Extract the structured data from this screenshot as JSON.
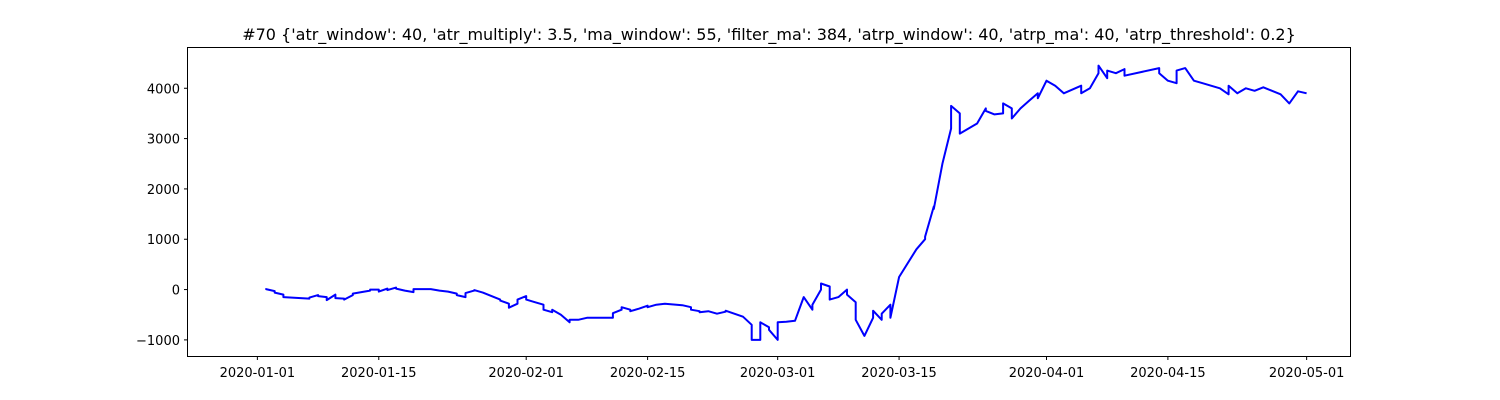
{
  "chart_data": {
    "type": "line",
    "title": "#70 {'atr_window': 40, 'atr_multiply': 3.5, 'ma_window': 55, 'filter_ma': 384, 'atrp_window': 40, 'atrp_ma': 40, 'atrp_threshold': 0.2}",
    "xlabel": "",
    "ylabel": "",
    "x_ticks": [
      "2020-01-01",
      "2020-01-15",
      "2020-02-01",
      "2020-02-15",
      "2020-03-01",
      "2020-03-15",
      "2020-04-01",
      "2020-04-15",
      "2020-05-01"
    ],
    "y_ticks": [
      -1000,
      0,
      1000,
      2000,
      3000,
      4000
    ],
    "xlim": [
      "2019-12-24",
      "2020-05-06"
    ],
    "ylim": [
      -1320,
      4800
    ],
    "grid": false,
    "series_color": "#0000ff",
    "series": [
      {
        "points": [
          [
            "2020-01-02",
            0
          ],
          [
            "2020-01-02",
            10
          ],
          [
            "2020-01-03",
            -30
          ],
          [
            "2020-01-03",
            -60
          ],
          [
            "2020-01-04",
            -100
          ],
          [
            "2020-01-04",
            -150
          ],
          [
            "2020-01-07",
            -180
          ],
          [
            "2020-01-07",
            -160
          ],
          [
            "2020-01-08",
            -110
          ],
          [
            "2020-01-08",
            -130
          ],
          [
            "2020-01-09",
            -150
          ],
          [
            "2020-01-09",
            -210
          ],
          [
            "2020-01-10",
            -100
          ],
          [
            "2020-01-10",
            -170
          ],
          [
            "2020-01-11",
            -180
          ],
          [
            "2020-01-11",
            -200
          ],
          [
            "2020-01-12",
            -110
          ],
          [
            "2020-01-12",
            -80
          ],
          [
            "2020-01-13",
            -50
          ],
          [
            "2020-01-14",
            -20
          ],
          [
            "2020-01-14",
            0
          ],
          [
            "2020-01-15",
            0
          ],
          [
            "2020-01-15",
            -40
          ],
          [
            "2020-01-16",
            20
          ],
          [
            "2020-01-16",
            -10
          ],
          [
            "2020-01-17",
            40
          ],
          [
            "2020-01-17",
            20
          ],
          [
            "2020-01-18",
            -20
          ],
          [
            "2020-01-19",
            -50
          ],
          [
            "2020-01-19",
            10
          ],
          [
            "2020-01-21",
            10
          ],
          [
            "2020-01-22",
            -20
          ],
          [
            "2020-01-23",
            -40
          ],
          [
            "2020-01-24",
            -80
          ],
          [
            "2020-01-24",
            -110
          ],
          [
            "2020-01-25",
            -150
          ],
          [
            "2020-01-25",
            -70
          ],
          [
            "2020-01-26",
            -20
          ],
          [
            "2020-01-26",
            -10
          ],
          [
            "2020-01-27",
            -60
          ],
          [
            "2020-01-28",
            -130
          ],
          [
            "2020-01-29",
            -200
          ],
          [
            "2020-01-29",
            -220
          ],
          [
            "2020-01-30",
            -280
          ],
          [
            "2020-01-30",
            -360
          ],
          [
            "2020-01-31",
            -280
          ],
          [
            "2020-01-31",
            -200
          ],
          [
            "2020-02-01",
            -130
          ],
          [
            "2020-02-01",
            -200
          ],
          [
            "2020-02-02",
            -250
          ],
          [
            "2020-02-03",
            -300
          ],
          [
            "2020-02-03",
            -400
          ],
          [
            "2020-02-04",
            -450
          ],
          [
            "2020-02-04",
            -400
          ],
          [
            "2020-02-05",
            -500
          ],
          [
            "2020-02-06",
            -650
          ],
          [
            "2020-02-06",
            -600
          ],
          [
            "2020-02-07",
            -600
          ],
          [
            "2020-02-08",
            -560
          ],
          [
            "2020-02-11",
            -560
          ],
          [
            "2020-02-11",
            -470
          ],
          [
            "2020-02-12",
            -400
          ],
          [
            "2020-02-12",
            -350
          ],
          [
            "2020-02-13",
            -400
          ],
          [
            "2020-02-13",
            -430
          ],
          [
            "2020-02-14",
            -380
          ],
          [
            "2020-02-15",
            -320
          ],
          [
            "2020-02-15",
            -350
          ],
          [
            "2020-02-16",
            -300
          ],
          [
            "2020-02-17",
            -280
          ],
          [
            "2020-02-19",
            -310
          ],
          [
            "2020-02-20",
            -350
          ],
          [
            "2020-02-20",
            -400
          ],
          [
            "2020-02-21",
            -430
          ],
          [
            "2020-02-21",
            -450
          ],
          [
            "2020-02-22",
            -430
          ],
          [
            "2020-02-23",
            -480
          ],
          [
            "2020-02-24",
            -440
          ],
          [
            "2020-02-24",
            -420
          ],
          [
            "2020-02-26",
            -540
          ],
          [
            "2020-02-27",
            -700
          ],
          [
            "2020-02-27",
            -1000
          ],
          [
            "2020-02-28",
            -1000
          ],
          [
            "2020-02-28",
            -650
          ],
          [
            "2020-02-29",
            -750
          ],
          [
            "2020-02-29",
            -800
          ],
          [
            "2020-03-01",
            -1000
          ],
          [
            "2020-03-01",
            -880
          ],
          [
            "2020-03-01",
            -650
          ],
          [
            "2020-03-02",
            -640
          ],
          [
            "2020-03-03",
            -620
          ],
          [
            "2020-03-04",
            -150
          ],
          [
            "2020-03-05",
            -400
          ],
          [
            "2020-03-05",
            -300
          ],
          [
            "2020-03-06",
            0
          ],
          [
            "2020-03-06",
            120
          ],
          [
            "2020-03-07",
            60
          ],
          [
            "2020-03-07",
            -200
          ],
          [
            "2020-03-08",
            -150
          ],
          [
            "2020-03-09",
            0
          ],
          [
            "2020-03-09",
            -100
          ],
          [
            "2020-03-10",
            -250
          ],
          [
            "2020-03-10",
            -600
          ],
          [
            "2020-03-11",
            -920
          ],
          [
            "2020-03-12",
            -560
          ],
          [
            "2020-03-12",
            -420
          ],
          [
            "2020-03-13",
            -600
          ],
          [
            "2020-03-13",
            -480
          ],
          [
            "2020-03-14",
            -300
          ],
          [
            "2020-03-14",
            -560
          ],
          [
            "2020-03-15",
            250
          ],
          [
            "2020-03-17",
            800
          ],
          [
            "2020-03-18",
            1000
          ],
          [
            "2020-03-18",
            1050
          ],
          [
            "2020-03-19",
            1650
          ],
          [
            "2020-03-19",
            1600
          ],
          [
            "2020-03-20",
            2500
          ],
          [
            "2020-03-21",
            3200
          ],
          [
            "2020-03-21",
            3650
          ],
          [
            "2020-03-22",
            3500
          ],
          [
            "2020-03-22",
            3100
          ],
          [
            "2020-03-24",
            3300
          ],
          [
            "2020-03-25",
            3600
          ],
          [
            "2020-03-25",
            3550
          ],
          [
            "2020-03-26",
            3480
          ],
          [
            "2020-03-27",
            3500
          ],
          [
            "2020-03-27",
            3700
          ],
          [
            "2020-03-28",
            3600
          ],
          [
            "2020-03-28",
            3400
          ],
          [
            "2020-03-29",
            3600
          ],
          [
            "2020-03-30",
            3750
          ],
          [
            "2020-03-31",
            3900
          ],
          [
            "2020-03-31",
            3800
          ],
          [
            "2020-04-01",
            4150
          ],
          [
            "2020-04-02",
            4050
          ],
          [
            "2020-04-03",
            3900
          ],
          [
            "2020-04-05",
            4050
          ],
          [
            "2020-04-05",
            3900
          ],
          [
            "2020-04-06",
            4000
          ],
          [
            "2020-04-07",
            4300
          ],
          [
            "2020-04-07",
            4450
          ],
          [
            "2020-04-08",
            4200
          ],
          [
            "2020-04-08",
            4350
          ],
          [
            "2020-04-09",
            4300
          ],
          [
            "2020-04-10",
            4380
          ],
          [
            "2020-04-10",
            4250
          ],
          [
            "2020-04-14",
            4400
          ],
          [
            "2020-04-14",
            4300
          ],
          [
            "2020-04-15",
            4150
          ],
          [
            "2020-04-16",
            4100
          ],
          [
            "2020-04-16",
            4350
          ],
          [
            "2020-04-17",
            4400
          ],
          [
            "2020-04-18",
            4150
          ],
          [
            "2020-04-19",
            4100
          ],
          [
            "2020-04-21",
            4000
          ],
          [
            "2020-04-22",
            3880
          ],
          [
            "2020-04-22",
            4050
          ],
          [
            "2020-04-23",
            3900
          ],
          [
            "2020-04-24",
            4000
          ],
          [
            "2020-04-25",
            3950
          ],
          [
            "2020-04-26",
            4020
          ],
          [
            "2020-04-27",
            3950
          ],
          [
            "2020-04-28",
            3880
          ],
          [
            "2020-04-29",
            3700
          ],
          [
            "2020-04-30",
            3940
          ],
          [
            "2020-05-01",
            3900
          ]
        ]
      }
    ]
  }
}
